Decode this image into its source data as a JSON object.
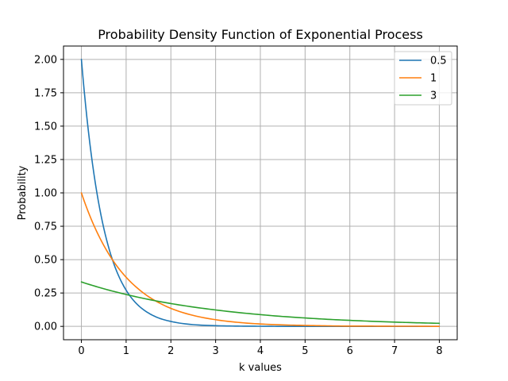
{
  "chart_data": {
    "type": "line",
    "title": "Probability Density Function of Exponential Process",
    "xlabel": "k values",
    "ylabel": "Probability",
    "xlim": [
      -0.4,
      8.4
    ],
    "ylim": [
      -0.1,
      2.1
    ],
    "x_ticks": [
      0,
      1,
      2,
      3,
      4,
      5,
      6,
      7,
      8
    ],
    "x_tick_labels": [
      "0",
      "1",
      "2",
      "3",
      "4",
      "5",
      "6",
      "7",
      "8"
    ],
    "y_ticks": [
      0,
      0.25,
      0.5,
      0.75,
      1.0,
      1.25,
      1.5,
      1.75,
      2.0
    ],
    "y_tick_labels": [
      "0.00",
      "0.25",
      "0.50",
      "0.75",
      "1.00",
      "1.25",
      "1.50",
      "1.75",
      "2.00"
    ],
    "grid": true,
    "legend_position": "top-right",
    "series": [
      {
        "name": "0.5",
        "color": "#1f77b4",
        "x": [
          0,
          0.25,
          0.5,
          0.75,
          1.0,
          1.25,
          1.5,
          1.75,
          2.0,
          2.5,
          3.0,
          3.5,
          4.0,
          4.5,
          5.0,
          5.5,
          6.0,
          6.5,
          7.0,
          7.5,
          8.0
        ],
        "values": [
          2.0,
          1.213,
          0.736,
          0.446,
          0.271,
          0.164,
          0.1,
          0.06,
          0.037,
          0.013,
          0.005,
          0.002,
          0.001,
          0.0,
          0.0,
          0.0,
          0.0,
          0.0,
          0.0,
          0.0,
          0.0
        ]
      },
      {
        "name": "1",
        "color": "#ff7f0e",
        "x": [
          0,
          0.25,
          0.5,
          0.75,
          1.0,
          1.25,
          1.5,
          1.75,
          2.0,
          2.5,
          3.0,
          3.5,
          4.0,
          4.5,
          5.0,
          5.5,
          6.0,
          6.5,
          7.0,
          7.5,
          8.0
        ],
        "values": [
          1.0,
          0.779,
          0.607,
          0.472,
          0.368,
          0.287,
          0.223,
          0.174,
          0.135,
          0.082,
          0.05,
          0.03,
          0.018,
          0.011,
          0.007,
          0.004,
          0.002,
          0.002,
          0.001,
          0.001,
          0.0
        ]
      },
      {
        "name": "3",
        "color": "#2ca02c",
        "x": [
          0,
          0.5,
          1.0,
          1.5,
          2.0,
          2.5,
          3.0,
          3.5,
          4.0,
          4.5,
          5.0,
          5.5,
          6.0,
          6.5,
          7.0,
          7.5,
          8.0
        ],
        "values": [
          0.333,
          0.282,
          0.239,
          0.202,
          0.171,
          0.145,
          0.123,
          0.104,
          0.088,
          0.074,
          0.063,
          0.053,
          0.045,
          0.038,
          0.032,
          0.027,
          0.023
        ]
      }
    ]
  }
}
